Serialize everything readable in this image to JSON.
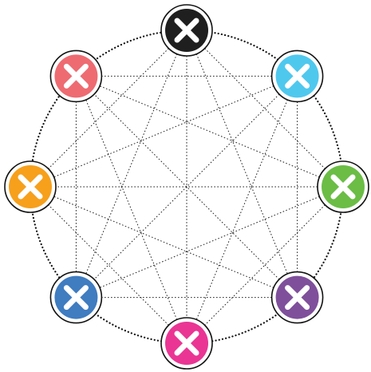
{
  "diagram": {
    "type": "complete-graph",
    "connections": "all-pairs",
    "edge_style": "dotted",
    "outer_ring_style": "dotted",
    "nodes": [
      {
        "id": "node-top",
        "color": "#1f1f1f",
        "icon": "close-icon"
      },
      {
        "id": "node-top-right",
        "color": "#4fc8ee",
        "icon": "close-icon"
      },
      {
        "id": "node-right",
        "color": "#6bbd45",
        "icon": "close-icon"
      },
      {
        "id": "node-bottom-right",
        "color": "#7f4f9b",
        "icon": "close-icon"
      },
      {
        "id": "node-bottom",
        "color": "#ea3594",
        "icon": "close-icon"
      },
      {
        "id": "node-bottom-left",
        "color": "#3f7cc0",
        "icon": "close-icon"
      },
      {
        "id": "node-left",
        "color": "#f6a01c",
        "icon": "close-icon"
      },
      {
        "id": "node-top-left",
        "color": "#ee6b72",
        "icon": "close-icon"
      }
    ]
  }
}
